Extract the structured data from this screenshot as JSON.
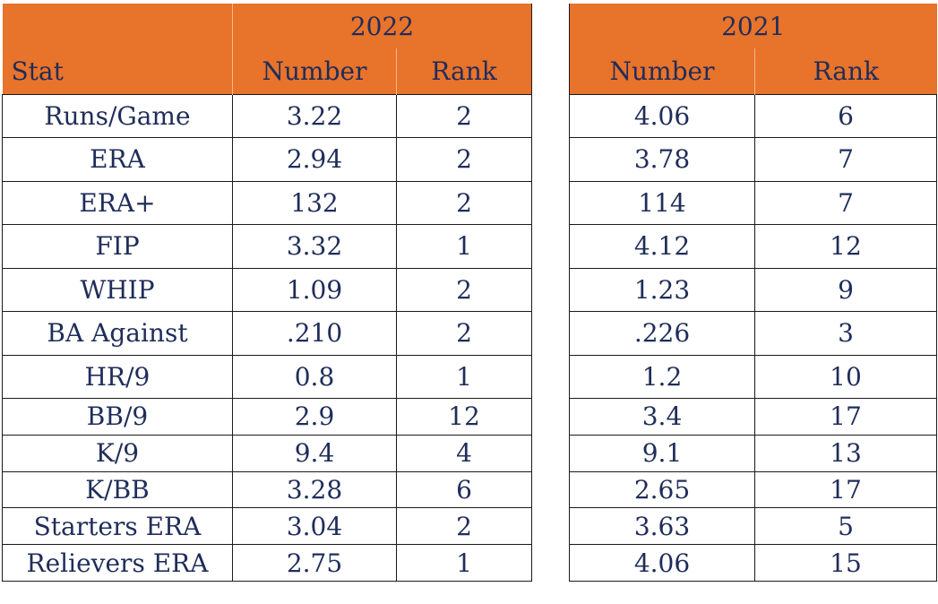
{
  "years": [
    "2022",
    "2021"
  ],
  "headers": {
    "stat": "Stat",
    "number": "Number",
    "rank": "Rank"
  },
  "rows": [
    {
      "stat": "Runs/Game",
      "n2022": "3.22",
      "r2022": "2",
      "n2021": "4.06",
      "r2021": "6"
    },
    {
      "stat": "ERA",
      "n2022": "2.94",
      "r2022": "2",
      "n2021": "3.78",
      "r2021": "7"
    },
    {
      "stat": "ERA+",
      "n2022": "132",
      "r2022": "2",
      "n2021": "114",
      "r2021": "7"
    },
    {
      "stat": "FIP",
      "n2022": "3.32",
      "r2022": "1",
      "n2021": "4.12",
      "r2021": "12"
    },
    {
      "stat": "WHIP",
      "n2022": "1.09",
      "r2022": "2",
      "n2021": "1.23",
      "r2021": "9"
    },
    {
      "stat": "BA Against",
      "n2022": ".210",
      "r2022": "2",
      "n2021": ".226",
      "r2021": "3"
    },
    {
      "stat": "HR/9",
      "n2022": "0.8",
      "r2022": "1",
      "n2021": "1.2",
      "r2021": "10"
    },
    {
      "stat": "BB/9",
      "n2022": "2.9",
      "r2022": "12",
      "n2021": "3.4",
      "r2021": "17"
    },
    {
      "stat": "K/9",
      "n2022": "9.4",
      "r2022": "4",
      "n2021": "9.1",
      "r2021": "13"
    },
    {
      "stat": "K/BB",
      "n2022": "3.28",
      "r2022": "6",
      "n2021": "2.65",
      "r2021": "17"
    },
    {
      "stat": "Starters ERA",
      "n2022": "3.04",
      "r2022": "2",
      "n2021": "3.63",
      "r2021": "5"
    },
    {
      "stat": "Relievers ERA",
      "n2022": "2.75",
      "r2022": "1",
      "n2021": "4.06",
      "r2021": "15"
    }
  ],
  "colors": {
    "header_fill": "#e8732a",
    "text": "#1f2d5a",
    "grid": "#1a1a1a"
  }
}
